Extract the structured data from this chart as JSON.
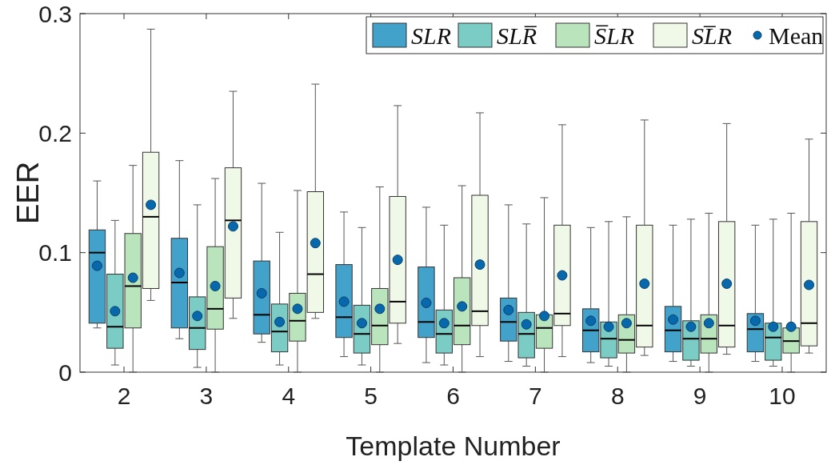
{
  "chart_data": {
    "type": "box",
    "xlabel": "Template Number",
    "ylabel": "EER",
    "categories": [
      "2",
      "3",
      "4",
      "5",
      "6",
      "7",
      "8",
      "9",
      "10"
    ],
    "ylim": [
      0,
      0.3
    ],
    "yticks": [
      0,
      0.1,
      0.2,
      0.3
    ],
    "legend": "top right",
    "grid": false,
    "annotations": [
      "Mean"
    ],
    "series": [
      {
        "name": "SLR",
        "color": "#42a2ca",
        "boxes": [
          {
            "low": 0.037,
            "q1": 0.041,
            "median": 0.1,
            "q3": 0.119,
            "high": 0.16,
            "mean": 0.089
          },
          {
            "low": 0.028,
            "q1": 0.037,
            "median": 0.075,
            "q3": 0.112,
            "high": 0.177,
            "mean": 0.083
          },
          {
            "low": 0.025,
            "q1": 0.032,
            "median": 0.048,
            "q3": 0.093,
            "high": 0.158,
            "mean": 0.066
          },
          {
            "low": 0.013,
            "q1": 0.029,
            "median": 0.046,
            "q3": 0.09,
            "high": 0.134,
            "mean": 0.059
          },
          {
            "low": 0.008,
            "q1": 0.029,
            "median": 0.042,
            "q3": 0.088,
            "high": 0.138,
            "mean": 0.058
          },
          {
            "low": 0.009,
            "q1": 0.026,
            "median": 0.042,
            "q3": 0.062,
            "high": 0.14,
            "mean": 0.052
          },
          {
            "low": 0.008,
            "q1": 0.017,
            "median": 0.035,
            "q3": 0.053,
            "high": 0.121,
            "mean": 0.043
          },
          {
            "low": 0.009,
            "q1": 0.017,
            "median": 0.035,
            "q3": 0.055,
            "high": 0.123,
            "mean": 0.044
          },
          {
            "low": 0.009,
            "q1": 0.017,
            "median": 0.036,
            "q3": 0.049,
            "high": 0.123,
            "mean": 0.043
          }
        ]
      },
      {
        "name": "SLR̅",
        "color": "#7bccc4",
        "boxes": [
          {
            "low": 0.006,
            "q1": 0.02,
            "median": 0.038,
            "q3": 0.082,
            "high": 0.127,
            "mean": 0.051
          },
          {
            "low": 0.004,
            "q1": 0.019,
            "median": 0.037,
            "q3": 0.063,
            "high": 0.14,
            "mean": 0.047
          },
          {
            "low": 0.006,
            "q1": 0.017,
            "median": 0.034,
            "q3": 0.057,
            "high": 0.117,
            "mean": 0.042
          },
          {
            "low": 0.006,
            "q1": 0.016,
            "median": 0.032,
            "q3": 0.056,
            "high": 0.121,
            "mean": 0.041
          },
          {
            "low": 0.006,
            "q1": 0.016,
            "median": 0.032,
            "q3": 0.052,
            "high": 0.123,
            "mean": 0.041
          },
          {
            "low": 0.005,
            "q1": 0.012,
            "median": 0.032,
            "q3": 0.05,
            "high": 0.124,
            "mean": 0.04
          },
          {
            "low": 0.005,
            "q1": 0.012,
            "median": 0.028,
            "q3": 0.042,
            "high": 0.126,
            "mean": 0.038
          },
          {
            "low": 0.005,
            "q1": 0.01,
            "median": 0.028,
            "q3": 0.043,
            "high": 0.128,
            "mean": 0.038
          },
          {
            "low": 0.005,
            "q1": 0.01,
            "median": 0.029,
            "q3": 0.041,
            "high": 0.128,
            "mean": 0.038
          }
        ]
      },
      {
        "name": "S̅LR",
        "color": "#bae4bc",
        "boxes": [
          {
            "low": 0,
            "q1": 0.037,
            "median": 0.072,
            "q3": 0.116,
            "high": 0.173,
            "mean": 0.079
          },
          {
            "low": 0,
            "q1": 0.036,
            "median": 0.053,
            "q3": 0.105,
            "high": 0.162,
            "mean": 0.072
          },
          {
            "low": 0,
            "q1": 0.026,
            "median": 0.043,
            "q3": 0.066,
            "high": 0.152,
            "mean": 0.053
          },
          {
            "low": 0,
            "q1": 0.023,
            "median": 0.039,
            "q3": 0.07,
            "high": 0.155,
            "mean": 0.053
          },
          {
            "low": 0,
            "q1": 0.023,
            "median": 0.039,
            "q3": 0.079,
            "high": 0.156,
            "mean": 0.055
          },
          {
            "low": 0,
            "q1": 0.02,
            "median": 0.037,
            "q3": 0.048,
            "high": 0.146,
            "mean": 0.047
          },
          {
            "low": 0,
            "q1": 0.016,
            "median": 0.027,
            "q3": 0.048,
            "high": 0.13,
            "mean": 0.041
          },
          {
            "low": 0,
            "q1": 0.016,
            "median": 0.028,
            "q3": 0.048,
            "high": 0.133,
            "mean": 0.041
          },
          {
            "low": 0,
            "q1": 0.016,
            "median": 0.026,
            "q3": 0.037,
            "high": 0.133,
            "mean": 0.038
          }
        ]
      },
      {
        "name": "SL̅R",
        "color": "#f0f9e8",
        "boxes": [
          {
            "low": 0.06,
            "q1": 0.07,
            "median": 0.13,
            "q3": 0.184,
            "high": 0.287,
            "mean": 0.14
          },
          {
            "low": 0.045,
            "q1": 0.062,
            "median": 0.127,
            "q3": 0.171,
            "high": 0.235,
            "mean": 0.122
          },
          {
            "low": 0.045,
            "q1": 0.05,
            "median": 0.082,
            "q3": 0.151,
            "high": 0.241,
            "mean": 0.108
          },
          {
            "low": 0.024,
            "q1": 0.041,
            "median": 0.059,
            "q3": 0.147,
            "high": 0.223,
            "mean": 0.094
          },
          {
            "low": 0.013,
            "q1": 0.039,
            "median": 0.051,
            "q3": 0.148,
            "high": 0.217,
            "mean": 0.09
          },
          {
            "low": 0.013,
            "q1": 0.039,
            "median": 0.049,
            "q3": 0.123,
            "high": 0.207,
            "mean": 0.081
          },
          {
            "low": 0.014,
            "q1": 0.021,
            "median": 0.039,
            "q3": 0.123,
            "high": 0.211,
            "mean": 0.074
          },
          {
            "low": 0.015,
            "q1": 0.021,
            "median": 0.039,
            "q3": 0.126,
            "high": 0.208,
            "mean": 0.074
          },
          {
            "low": 0.016,
            "q1": 0.022,
            "median": 0.041,
            "q3": 0.126,
            "high": 0.195,
            "mean": 0.073
          }
        ]
      }
    ]
  }
}
